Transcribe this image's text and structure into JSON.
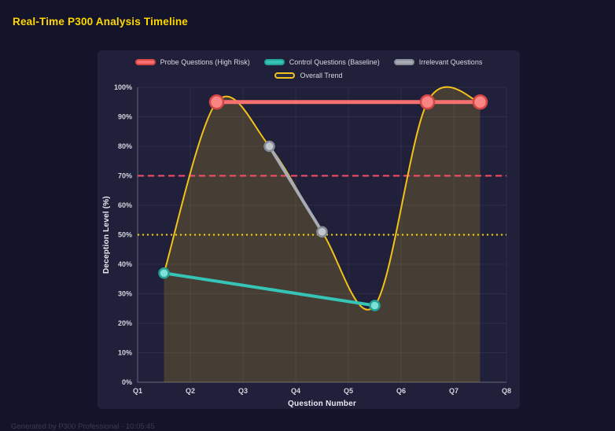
{
  "page": {
    "title": "Real-Time P300 Analysis Timeline",
    "footer": "Generated by P300 Professional - 10:05:45"
  },
  "chart_data": {
    "type": "line",
    "title": "Real-Time P300 Analysis Timeline",
    "xlabel": "Question Number",
    "ylabel": "Deception Level (%)",
    "xlim": [
      1,
      8
    ],
    "ylim": [
      0,
      100
    ],
    "grid": true,
    "legend_position": "top",
    "x_ticks": [
      {
        "value": 1,
        "label": "Q1"
      },
      {
        "value": 2,
        "label": "Q2"
      },
      {
        "value": 3,
        "label": "Q3"
      },
      {
        "value": 4,
        "label": "Q4"
      },
      {
        "value": 5,
        "label": "Q5"
      },
      {
        "value": 6,
        "label": "Q6"
      },
      {
        "value": 7,
        "label": "Q7"
      },
      {
        "value": 8,
        "label": "Q8"
      }
    ],
    "y_ticks": [
      {
        "value": 0,
        "label": "0%"
      },
      {
        "value": 10,
        "label": "10%"
      },
      {
        "value": 20,
        "label": "20%"
      },
      {
        "value": 30,
        "label": "30%"
      },
      {
        "value": 40,
        "label": "40%"
      },
      {
        "value": 50,
        "label": "50%"
      },
      {
        "value": 60,
        "label": "60%"
      },
      {
        "value": 70,
        "label": "70%"
      },
      {
        "value": 80,
        "label": "80%"
      },
      {
        "value": 90,
        "label": "90%"
      },
      {
        "value": 100,
        "label": "100%"
      }
    ],
    "series": [
      {
        "name": "Probe Questions (High Risk)",
        "color": "#f87171",
        "marker_fill": "#f98585",
        "marker_stroke": "#d64545",
        "line_width": 5,
        "marker_radius": 8.5,
        "smooth": false,
        "area": false,
        "legend_swatch": {
          "fill": "#f87171",
          "border": "#d64545"
        },
        "points": [
          [
            2.5,
            95
          ],
          [
            6.5,
            95
          ],
          [
            7.5,
            95
          ]
        ]
      },
      {
        "name": "Control Questions (Baseline)",
        "color": "#35c4b5",
        "marker_fill": "#7ee0d6",
        "marker_stroke": "#23a296",
        "line_width": 4,
        "marker_radius": 6,
        "smooth": false,
        "area": false,
        "legend_swatch": {
          "fill": "#35c4b5",
          "border": "#23a296"
        },
        "points": [
          [
            1.5,
            37
          ],
          [
            5.5,
            26
          ]
        ]
      },
      {
        "name": "Irrelevant Questions",
        "color": "#a6abb4",
        "marker_fill": "#c3c7cd",
        "marker_stroke": "#878c95",
        "line_width": 4,
        "marker_radius": 6,
        "smooth": false,
        "area": false,
        "legend_swatch": {
          "fill": "#a6abb4",
          "border": "#878c95"
        },
        "points": [
          [
            3.5,
            80
          ],
          [
            4.5,
            51
          ]
        ]
      },
      {
        "name": "Overall Trend",
        "color": "#f2c21a",
        "marker_fill": "",
        "marker_stroke": "",
        "line_width": 2,
        "marker_radius": 0,
        "smooth": true,
        "area": true,
        "area_color": "rgba(242,194,26,0.18)",
        "legend_swatch": {
          "fill": "#2a2a42",
          "border": "#f2c21a"
        },
        "points": [
          [
            1.5,
            37
          ],
          [
            2.5,
            95
          ],
          [
            3.5,
            80
          ],
          [
            4.5,
            51
          ],
          [
            5.5,
            26
          ],
          [
            6.5,
            95
          ],
          [
            7.5,
            95
          ]
        ]
      }
    ],
    "thresholds": [
      {
        "y": 70,
        "color": "#ff4d65",
        "style": "dashed"
      },
      {
        "y": 50,
        "color": "#ffd700",
        "style": "dotted"
      }
    ],
    "colors": {
      "page_background": "#131329",
      "panel_background": "#20203a",
      "title": "#ffd700",
      "grid": "rgba(255,255,255,0.06)",
      "axis": "rgba(255,255,255,0.28)",
      "tick_label": "#d2d4dc"
    }
  }
}
